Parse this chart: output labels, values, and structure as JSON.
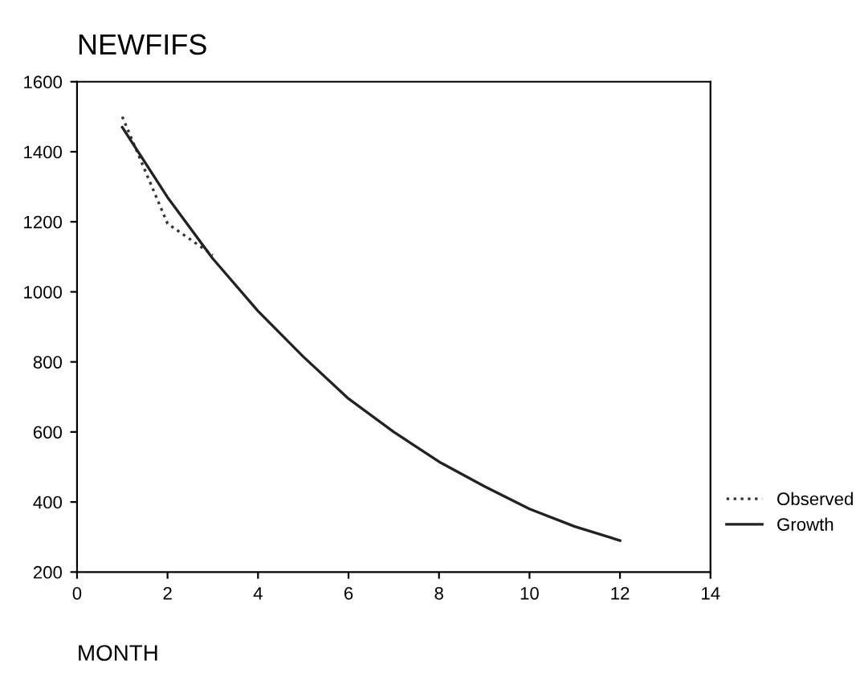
{
  "chart_data": {
    "type": "line",
    "title": "NEWFIFS",
    "xlabel": "MONTH",
    "series": [
      {
        "name": "Observed",
        "color": "#333333",
        "line_style": "dotted",
        "x": [
          1,
          2,
          3
        ],
        "values": [
          1500,
          1195,
          1105
        ]
      },
      {
        "name": "Growth",
        "color": "#222222",
        "line_style": "solid",
        "x": [
          1,
          2,
          3,
          4,
          5,
          6,
          7,
          8,
          9,
          10,
          11,
          12
        ],
        "values": [
          1470,
          1270,
          1095,
          945,
          815,
          695,
          600,
          515,
          445,
          380,
          330,
          290
        ]
      }
    ],
    "xlim": [
      0,
      14
    ],
    "xticks": [
      0,
      2,
      4,
      6,
      8,
      10,
      12,
      14
    ],
    "ylim": [
      200,
      1600
    ],
    "yticks": [
      200,
      400,
      600,
      800,
      1000,
      1200,
      1400,
      1600
    ],
    "grid": false,
    "legend": "right",
    "marker": "none"
  }
}
